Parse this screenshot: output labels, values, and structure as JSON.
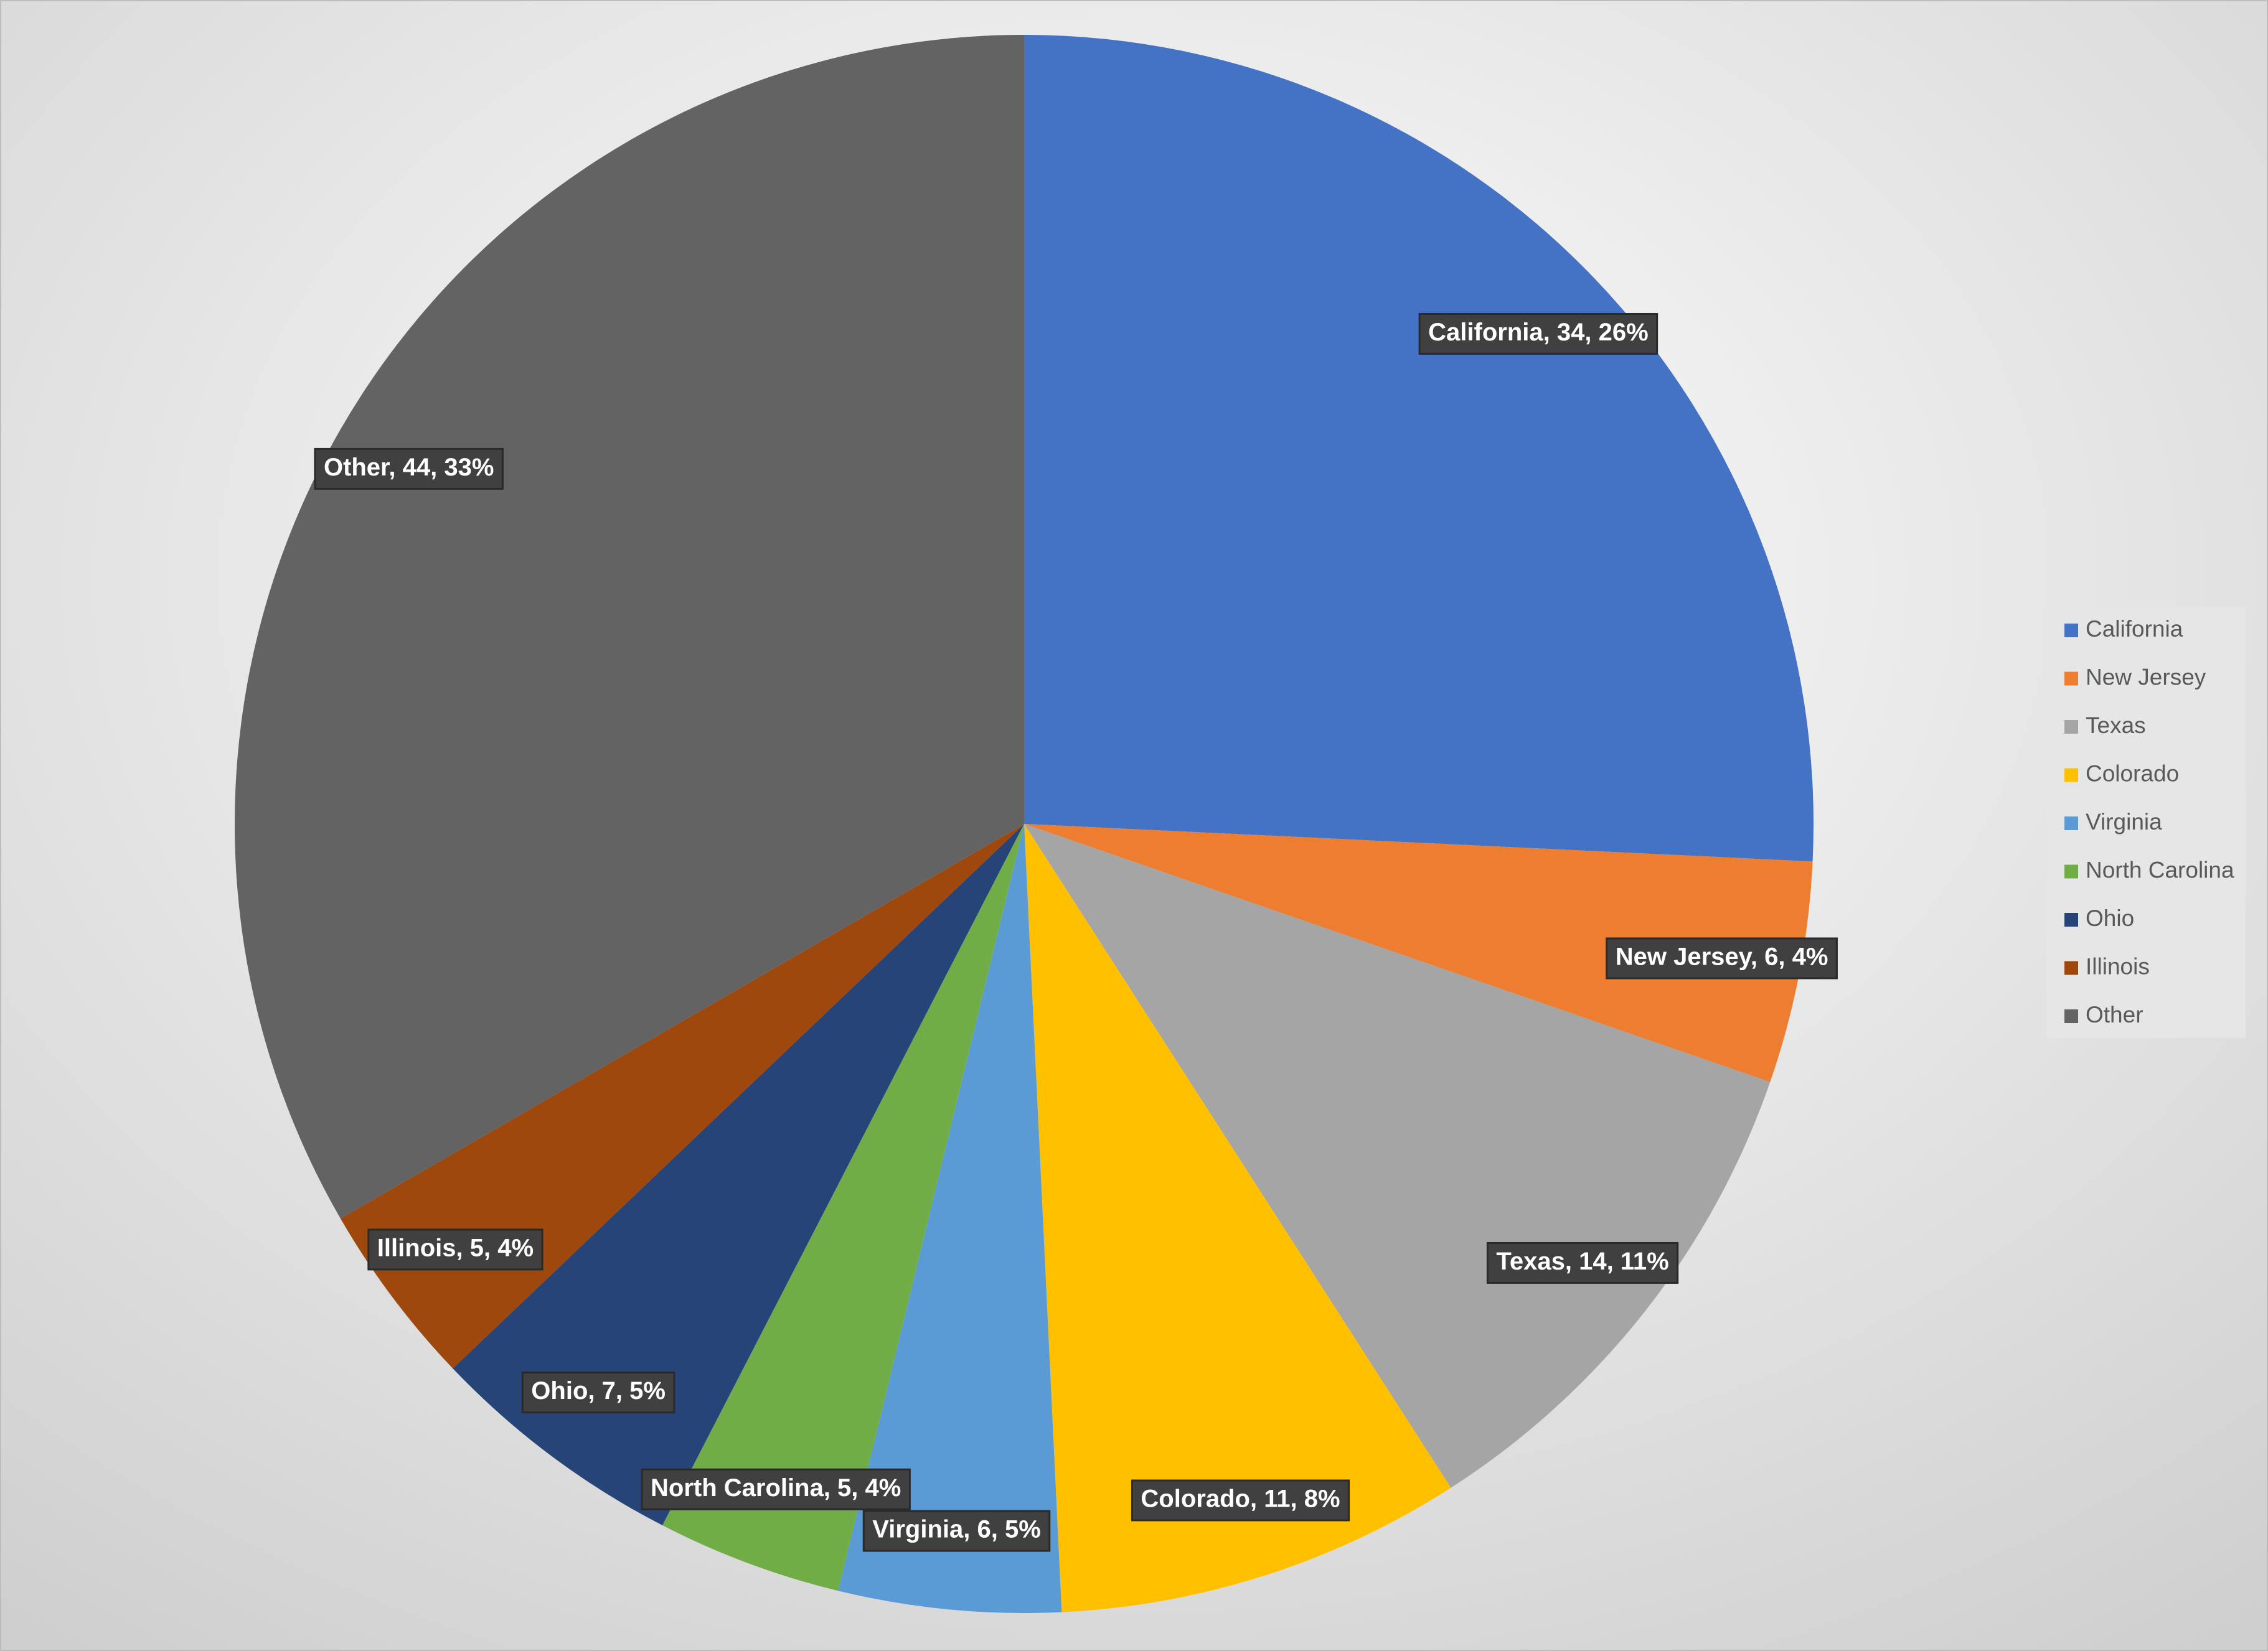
{
  "chart_data": {
    "type": "pie",
    "categories": [
      "California",
      "New Jersey",
      "Texas",
      "Colorado",
      "Virginia",
      "North Carolina",
      "Ohio",
      "Illinois",
      "Other"
    ],
    "values": [
      34,
      6,
      14,
      11,
      6,
      5,
      7,
      5,
      44
    ],
    "value_labels": [
      "California, 34, 26%",
      "New Jersey, 6, 4%",
      "Texas, 14, 11%",
      "Colorado, 11, 8%",
      "Virginia, 6, 5%",
      "North Carolina, 5, 4%",
      "Ohio, 7, 5%",
      "Illinois, 5, 4%",
      "Other, 44, 33%"
    ],
    "colors": [
      "#4472c4",
      "#ed7d31",
      "#a5a5a5",
      "#ffc000",
      "#5b9bd5",
      "#70ad47",
      "#264478",
      "#9e480e",
      "#636363"
    ],
    "legend": "right"
  }
}
